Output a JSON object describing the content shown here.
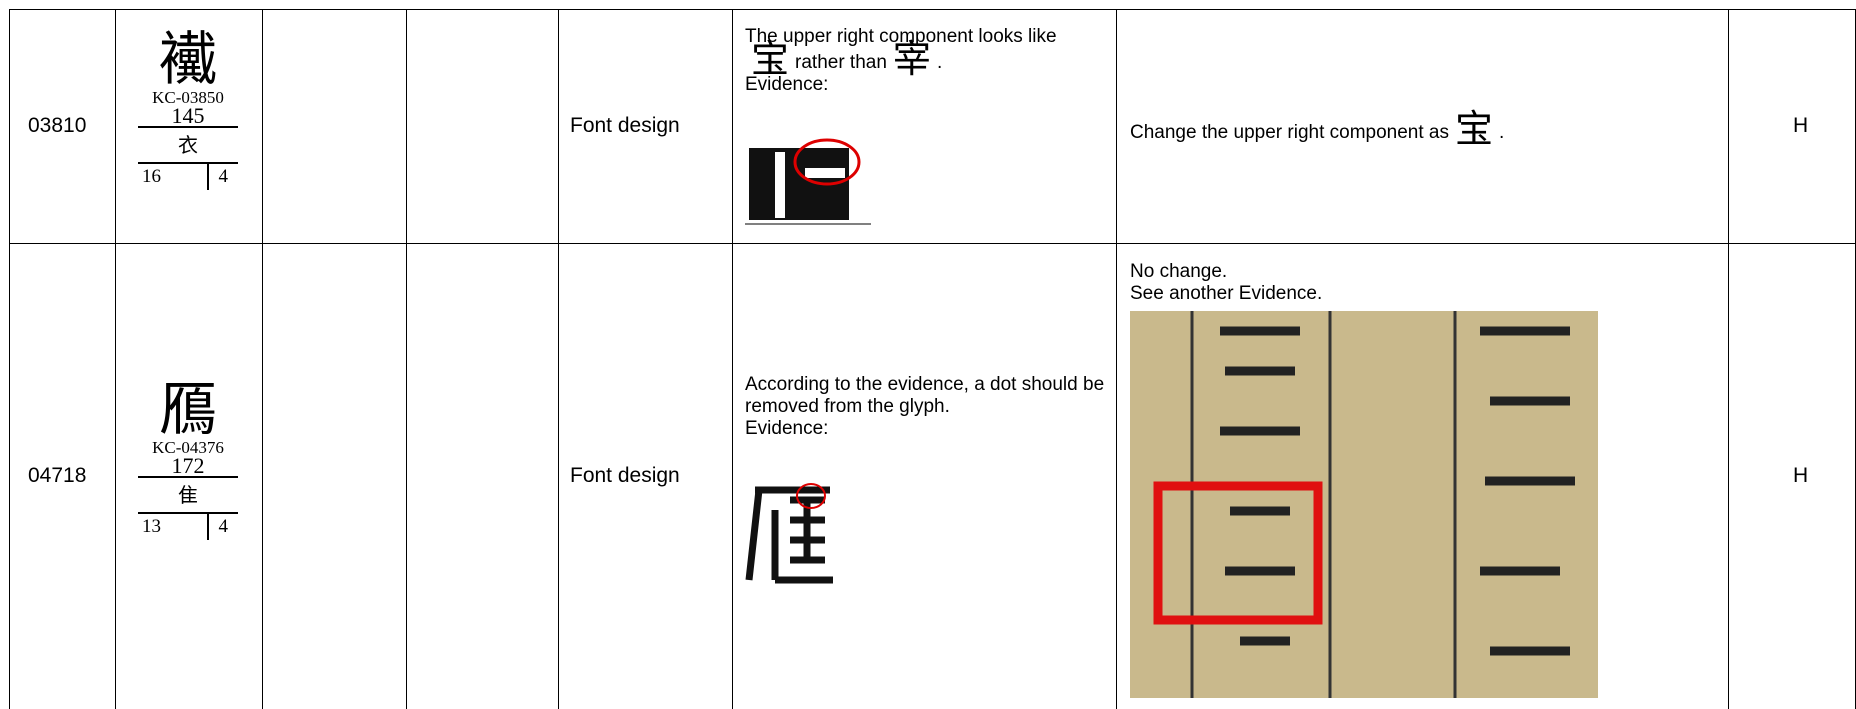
{
  "rows": [
    {
      "id": "03810",
      "glyph": "襶",
      "source": "KC-03850",
      "radical_number": "145",
      "radical": "衣",
      "strokes": "16",
      "extra_strokes": "4",
      "category": "Font design",
      "description": [
        "The upper right component looks like",
        "宝",
        "rather than",
        "宰",
        "."
      ],
      "evidence_label": "Evidence:",
      "resolution": [
        "Change the upper right component as",
        "宝",
        "."
      ],
      "priority": "H"
    },
    {
      "id": "04718",
      "glyph": "鴈",
      "source": "KC-04376",
      "radical_number": "172",
      "radical": "隹",
      "strokes": "13",
      "extra_strokes": "4",
      "category": "Font design",
      "description": [
        "According to the evidence, a dot should be removed from the glyph."
      ],
      "evidence_label": "Evidence:",
      "resolution": [
        "No change.",
        "See another Evidence."
      ],
      "priority": "H"
    }
  ]
}
